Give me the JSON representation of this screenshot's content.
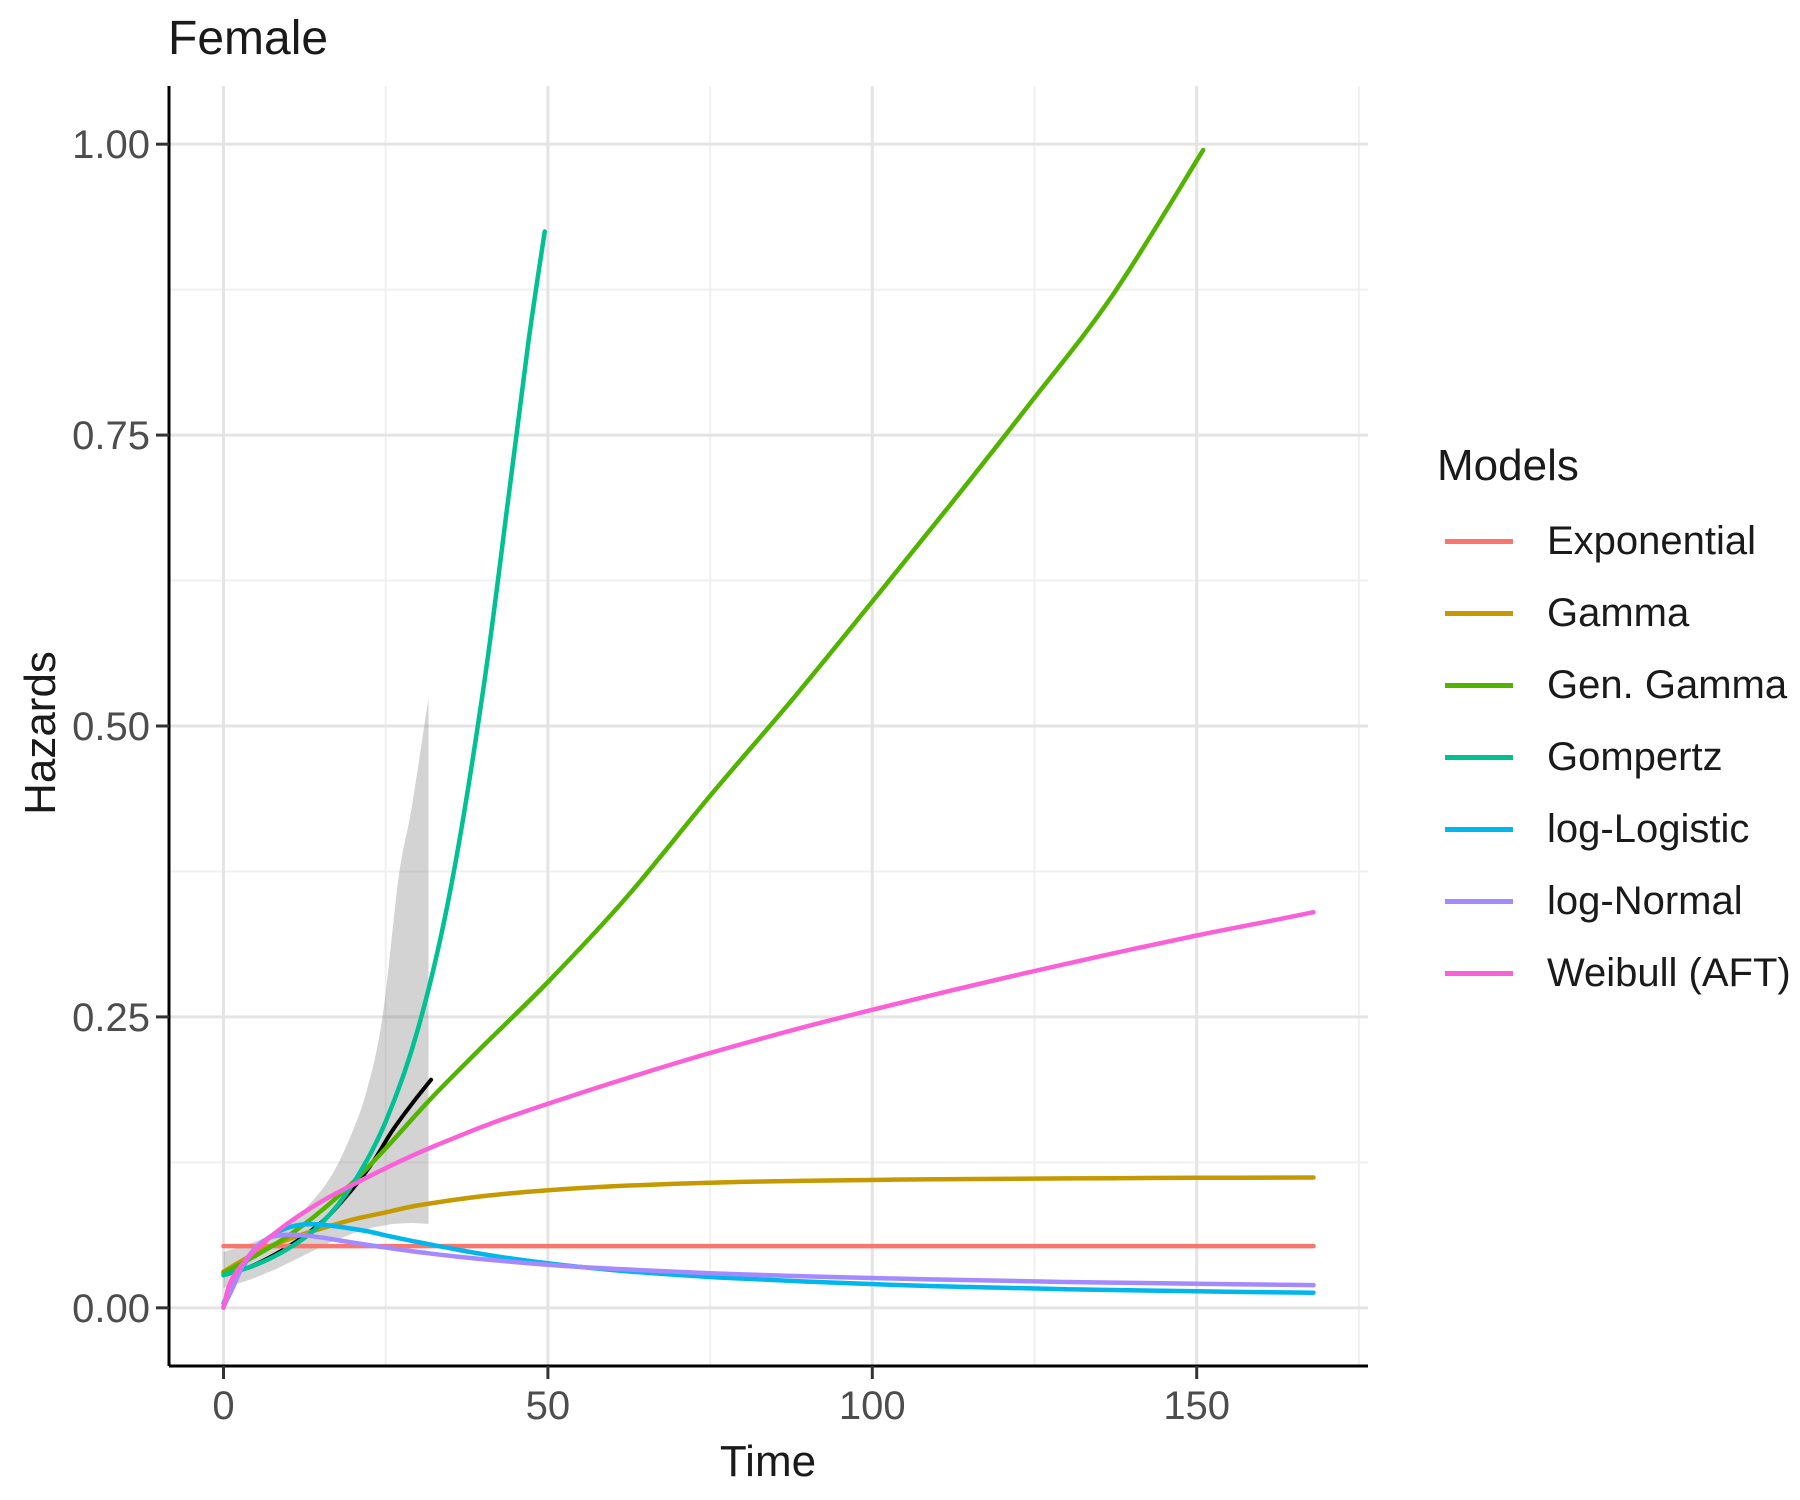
{
  "chart_data": {
    "type": "line",
    "title": "Female",
    "xlabel": "Time",
    "ylabel": "Hazards",
    "legend_title": "Models",
    "legend_position": "right",
    "grid": "major and minor, light grey on white",
    "xlim": [
      -8.4,
      176.4
    ],
    "ylim": [
      -0.05,
      1.05
    ],
    "x_ticks": [
      0,
      50,
      100,
      150
    ],
    "x_tick_labels": [
      "0",
      "50",
      "100",
      "150"
    ],
    "x_minor_ticks": [
      25,
      75,
      125,
      175
    ],
    "y_ticks": [
      0,
      0.25,
      0.5,
      0.75,
      1
    ],
    "y_tick_labels": [
      "0.00",
      "0.25",
      "0.50",
      "0.75",
      "1.00"
    ],
    "y_minor_ticks": [
      0.125,
      0.375,
      0.625,
      0.875
    ],
    "colors": {
      "grid_major": "#E4E4E4",
      "grid_minor": "#F0F0F0",
      "axis_line": "#000000",
      "tick_mark": "#333333",
      "tick_label": "#4D4D4D",
      "text": "#1A1A1A",
      "band": "rgba(130,130,130,0.35)"
    },
    "series": [
      {
        "name": "Exponential",
        "color": "#F8766D",
        "points": [
          [
            0,
            0.053
          ],
          [
            168,
            0.053
          ]
        ]
      },
      {
        "name": "Gamma",
        "color": "#C49A00",
        "points": [
          [
            0,
            0.031
          ],
          [
            3,
            0.041
          ],
          [
            6,
            0.05
          ],
          [
            10,
            0.059
          ],
          [
            15,
            0.068
          ],
          [
            20,
            0.076
          ],
          [
            25,
            0.082
          ],
          [
            30,
            0.088
          ],
          [
            40,
            0.096
          ],
          [
            50,
            0.101
          ],
          [
            60,
            0.1045
          ],
          [
            75,
            0.1075
          ],
          [
            90,
            0.1092
          ],
          [
            110,
            0.1105
          ],
          [
            130,
            0.1112
          ],
          [
            150,
            0.1117
          ],
          [
            168,
            0.112
          ]
        ]
      },
      {
        "name": "Gen. Gamma",
        "color": "#53B400",
        "points": [
          [
            0,
            0.03
          ],
          [
            5,
            0.045
          ],
          [
            10,
            0.062
          ],
          [
            15,
            0.083
          ],
          [
            20,
            0.108
          ],
          [
            25,
            0.137
          ],
          [
            32,
            0.18
          ],
          [
            40,
            0.225
          ],
          [
            50,
            0.28
          ],
          [
            62,
            0.352
          ],
          [
            75,
            0.44
          ],
          [
            88,
            0.525
          ],
          [
            100,
            0.607
          ],
          [
            112,
            0.69
          ],
          [
            124,
            0.775
          ],
          [
            137,
            0.87
          ],
          [
            151,
            0.995
          ]
        ]
      },
      {
        "name": "Gompertz",
        "color": "#00C094",
        "points": [
          [
            0,
            0.028
          ],
          [
            5,
            0.037
          ],
          [
            10,
            0.051
          ],
          [
            15,
            0.072
          ],
          [
            20,
            0.107
          ],
          [
            25,
            0.16
          ],
          [
            30,
            0.24
          ],
          [
            35,
            0.36
          ],
          [
            40,
            0.53
          ],
          [
            44,
            0.7
          ],
          [
            47,
            0.83
          ],
          [
            49.5,
            0.925
          ]
        ]
      },
      {
        "name": "log-Logistic",
        "color": "#00B6EB",
        "points": [
          [
            0,
            0.004
          ],
          [
            2,
            0.026
          ],
          [
            4,
            0.044
          ],
          [
            6,
            0.056
          ],
          [
            8,
            0.064
          ],
          [
            10,
            0.069
          ],
          [
            12,
            0.0715
          ],
          [
            14,
            0.0718
          ],
          [
            16,
            0.071
          ],
          [
            18,
            0.0695
          ],
          [
            22,
            0.066
          ],
          [
            26,
            0.061
          ],
          [
            30,
            0.0565
          ],
          [
            36,
            0.05
          ],
          [
            43,
            0.0435
          ],
          [
            52,
            0.037
          ],
          [
            62,
            0.0315
          ],
          [
            75,
            0.0265
          ],
          [
            90,
            0.0225
          ],
          [
            110,
            0.0185
          ],
          [
            130,
            0.016
          ],
          [
            150,
            0.0142
          ],
          [
            168,
            0.013
          ]
        ]
      },
      {
        "name": "log-Normal",
        "color": "#A58AFF",
        "points": [
          [
            0,
            0.001
          ],
          [
            1.5,
            0.018
          ],
          [
            3,
            0.037
          ],
          [
            5,
            0.052
          ],
          [
            7,
            0.06
          ],
          [
            9,
            0.0625
          ],
          [
            12,
            0.0625
          ],
          [
            15,
            0.0605
          ],
          [
            18,
            0.0578
          ],
          [
            22,
            0.0543
          ],
          [
            26,
            0.051
          ],
          [
            30,
            0.048
          ],
          [
            36,
            0.044
          ],
          [
            43,
            0.0402
          ],
          [
            52,
            0.0362
          ],
          [
            62,
            0.033
          ],
          [
            75,
            0.0297
          ],
          [
            90,
            0.027
          ],
          [
            110,
            0.0243
          ],
          [
            130,
            0.0222
          ],
          [
            150,
            0.0207
          ],
          [
            168,
            0.0195
          ]
        ]
      },
      {
        "name": "Weibull (AFT)",
        "color": "#FB61D7",
        "points": [
          [
            0,
            0
          ],
          [
            1,
            0.021
          ],
          [
            3,
            0.038
          ],
          [
            6,
            0.055
          ],
          [
            10,
            0.073
          ],
          [
            15,
            0.091
          ],
          [
            20,
            0.106
          ],
          [
            25,
            0.12
          ],
          [
            30,
            0.133
          ],
          [
            36,
            0.147
          ],
          [
            43,
            0.162
          ],
          [
            52,
            0.179
          ],
          [
            62,
            0.197
          ],
          [
            75,
            0.219
          ],
          [
            90,
            0.242
          ],
          [
            105,
            0.263
          ],
          [
            120,
            0.283
          ],
          [
            135,
            0.302
          ],
          [
            150,
            0.32
          ],
          [
            160,
            0.331
          ],
          [
            168,
            0.34
          ]
        ]
      }
    ],
    "observed_line": {
      "name": "observed-hazard",
      "color": "#000000",
      "points": [
        [
          0,
          0.028
        ],
        [
          4,
          0.035
        ],
        [
          8,
          0.046
        ],
        [
          12,
          0.06
        ],
        [
          16,
          0.078
        ],
        [
          20,
          0.103
        ],
        [
          23,
          0.125
        ],
        [
          26,
          0.152
        ],
        [
          29,
          0.175
        ],
        [
          32,
          0.196
        ]
      ]
    },
    "confidence_band": {
      "name": "observed-hazard-confidence-band",
      "color": "rgba(130,130,130,0.35)",
      "upper": [
        [
          0,
          0.048
        ],
        [
          4,
          0.055
        ],
        [
          8,
          0.065
        ],
        [
          12,
          0.082
        ],
        [
          16,
          0.108
        ],
        [
          19,
          0.14
        ],
        [
          22,
          0.185
        ],
        [
          24.5,
          0.25
        ],
        [
          27,
          0.37
        ],
        [
          29,
          0.43
        ],
        [
          31.6,
          0.524
        ]
      ],
      "lower": [
        [
          0,
          0.017
        ],
        [
          4,
          0.024
        ],
        [
          8,
          0.033
        ],
        [
          12,
          0.044
        ],
        [
          16,
          0.055
        ],
        [
          20,
          0.064
        ],
        [
          23,
          0.069
        ],
        [
          26,
          0.072
        ],
        [
          29,
          0.073
        ],
        [
          31.6,
          0.072
        ]
      ]
    }
  }
}
